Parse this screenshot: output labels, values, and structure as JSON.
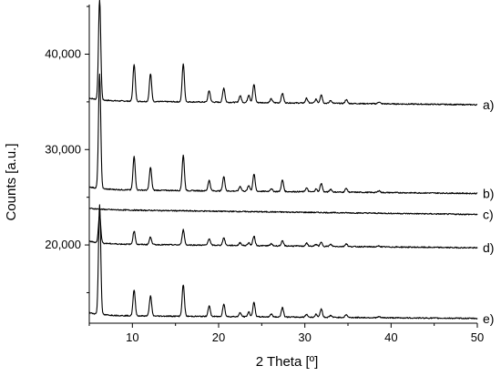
{
  "chart_data": {
    "type": "line",
    "title": "",
    "xlabel": "2 Theta [º]",
    "ylabel": "Counts [a.u.]",
    "xlim": [
      5,
      50
    ],
    "ylim": [
      11800,
      45200
    ],
    "x_ticks": [
      10,
      20,
      30,
      40,
      50
    ],
    "y_ticks": [
      20000,
      30000,
      40000
    ],
    "x_tick_labels": [
      "10",
      "20",
      "30",
      "40",
      "50"
    ],
    "y_tick_labels": [
      "20,000",
      "30,000",
      "40,000"
    ],
    "line_color": "#000000",
    "grid": false,
    "legend": "none",
    "peaks_2theta": [
      6.2,
      10.2,
      12.1,
      15.9,
      18.9,
      20.6,
      22.5,
      23.5,
      24.1,
      26.1,
      27.4,
      30.2,
      31.3,
      31.9,
      33.0,
      34.8,
      38.6
    ],
    "series": [
      {
        "name": "a)",
        "baseline_start": 35100,
        "baseline_end": 34700,
        "peak_heights": [
          10500,
          3900,
          2900,
          4000,
          1200,
          1500,
          700,
          800,
          1900,
          400,
          1000,
          500,
          400,
          900,
          300,
          400,
          200
        ]
      },
      {
        "name": "b)",
        "baseline_start": 25800,
        "baseline_end": 25400,
        "peak_heights": [
          12000,
          3500,
          2400,
          3700,
          1100,
          1500,
          500,
          600,
          1800,
          300,
          1200,
          400,
          300,
          900,
          300,
          400,
          200
        ]
      },
      {
        "name": "c)",
        "baseline_start": 23700,
        "baseline_end": 23200,
        "peak_heights": []
      },
      {
        "name": "d)",
        "baseline_start": 20100,
        "baseline_end": 19700,
        "peak_heights": [
          3000,
          1400,
          800,
          1600,
          700,
          800,
          300,
          300,
          1000,
          200,
          500,
          300,
          200,
          400,
          200,
          300,
          100
        ]
      },
      {
        "name": "e)",
        "baseline_start": 12600,
        "baseline_end": 12300,
        "peak_heights": [
          11500,
          2700,
          2100,
          3300,
          1100,
          1300,
          400,
          500,
          1500,
          300,
          1000,
          300,
          300,
          900,
          200,
          300,
          100
        ]
      }
    ]
  }
}
